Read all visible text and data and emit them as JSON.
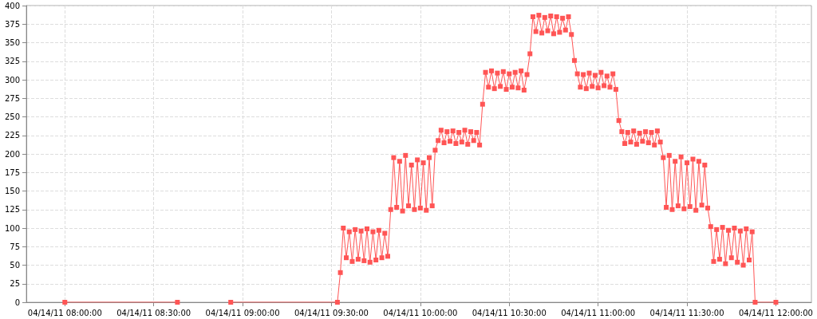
{
  "chart_data": {
    "type": "line",
    "marker": "square",
    "line_style": "solid",
    "grid": true,
    "xlim": [
      "--04-14T07:47",
      "--04-14T12:12"
    ],
    "xticks": [
      {
        "value": "--04-14T08:00",
        "label": "04/14/11 08:00:00"
      },
      {
        "value": "--04-14T08:30",
        "label": "04/14/11 08:30:00"
      },
      {
        "value": "--04-14T09:00",
        "label": "04/14/11 09:00:00"
      },
      {
        "value": "--04-14T09:30",
        "label": "04/14/11 09:30:00"
      },
      {
        "value": "--04-14T10:00",
        "label": "04/14/11 10:00:00"
      },
      {
        "value": "--04-14T10:30",
        "label": "04/14/11 10:30:00"
      },
      {
        "value": "--04-14T11:00",
        "label": "04/14/11 11:00:00"
      },
      {
        "value": "--04-14T11:30",
        "label": "04/14/11 11:30:00"
      },
      {
        "value": "--04-14T12:00",
        "label": "04/14/11 12:00:00"
      }
    ],
    "ylim": [
      0,
      400
    ],
    "yticks": [
      0,
      25,
      50,
      75,
      100,
      125,
      150,
      175,
      200,
      225,
      250,
      275,
      300,
      325,
      350,
      375,
      400
    ],
    "x": [
      "--04-14T08:00",
      "--04-14T08:38",
      "--04-14T08:47",
      "--04-14T08:56",
      "--04-14T09:32",
      "--04-14T09:33",
      "--04-14T09:34",
      "--04-14T09:35",
      "--04-14T09:36",
      "--04-14T09:37",
      "--04-14T09:38",
      "--04-14T09:39",
      "--04-14T09:40",
      "--04-14T09:41",
      "--04-14T09:42",
      "--04-14T09:43",
      "--04-14T09:44",
      "--04-14T09:45",
      "--04-14T09:46",
      "--04-14T09:47",
      "--04-14T09:48",
      "--04-14T09:49",
      "--04-14T09:50",
      "--04-14T09:51",
      "--04-14T09:52",
      "--04-14T09:53",
      "--04-14T09:54",
      "--04-14T09:55",
      "--04-14T09:56",
      "--04-14T09:57",
      "--04-14T09:58",
      "--04-14T09:59",
      "--04-14T10:00",
      "--04-14T10:01",
      "--04-14T10:02",
      "--04-14T10:03",
      "--04-14T10:04",
      "--04-14T10:05",
      "--04-14T10:06",
      "--04-14T10:07",
      "--04-14T10:08",
      "--04-14T10:09",
      "--04-14T10:10",
      "--04-14T10:11",
      "--04-14T10:12",
      "--04-14T10:13",
      "--04-14T10:14",
      "--04-14T10:15",
      "--04-14T10:16",
      "--04-14T10:17",
      "--04-14T10:18",
      "--04-14T10:19",
      "--04-14T10:20",
      "--04-14T10:21",
      "--04-14T10:22",
      "--04-14T10:23",
      "--04-14T10:24",
      "--04-14T10:25",
      "--04-14T10:26",
      "--04-14T10:27",
      "--04-14T10:28",
      "--04-14T10:29",
      "--04-14T10:30",
      "--04-14T10:31",
      "--04-14T10:32",
      "--04-14T10:33",
      "--04-14T10:34",
      "--04-14T10:35",
      "--04-14T10:36",
      "--04-14T10:37",
      "--04-14T10:38",
      "--04-14T10:39",
      "--04-14T10:40",
      "--04-14T10:41",
      "--04-14T10:42",
      "--04-14T10:43",
      "--04-14T10:44",
      "--04-14T10:45",
      "--04-14T10:46",
      "--04-14T10:47",
      "--04-14T10:48",
      "--04-14T10:49",
      "--04-14T10:50",
      "--04-14T10:51",
      "--04-14T10:52",
      "--04-14T10:53",
      "--04-14T10:54",
      "--04-14T10:55",
      "--04-14T10:56",
      "--04-14T10:57",
      "--04-14T10:58",
      "--04-14T10:59",
      "--04-14T11:00",
      "--04-14T11:01",
      "--04-14T11:02",
      "--04-14T11:03",
      "--04-14T11:04",
      "--04-14T11:05",
      "--04-14T11:06",
      "--04-14T11:07",
      "--04-14T11:08",
      "--04-14T11:09",
      "--04-14T11:10",
      "--04-14T11:11",
      "--04-14T11:12",
      "--04-14T11:13",
      "--04-14T11:14",
      "--04-14T11:15",
      "--04-14T11:16",
      "--04-14T11:17",
      "--04-14T11:18",
      "--04-14T11:19",
      "--04-14T11:20",
      "--04-14T11:21",
      "--04-14T11:22",
      "--04-14T11:23",
      "--04-14T11:24",
      "--04-14T11:25",
      "--04-14T11:26",
      "--04-14T11:27",
      "--04-14T11:28",
      "--04-14T11:29",
      "--04-14T11:30",
      "--04-14T11:31",
      "--04-14T11:32",
      "--04-14T11:33",
      "--04-14T11:34",
      "--04-14T11:35",
      "--04-14T11:36",
      "--04-14T11:37",
      "--04-14T11:38",
      "--04-14T11:39",
      "--04-14T11:40",
      "--04-14T11:41",
      "--04-14T11:42",
      "--04-14T11:43",
      "--04-14T11:44",
      "--04-14T11:45",
      "--04-14T11:46",
      "--04-14T11:47",
      "--04-14T11:48",
      "--04-14T11:49",
      "--04-14T11:50",
      "--04-14T11:51",
      "--04-14T11:52",
      "--04-14T11:53",
      "--04-14T12:00"
    ],
    "series": [
      {
        "color": "#ff5555",
        "values": [
          0,
          0,
          null,
          0,
          0,
          40,
          100,
          60,
          95,
          55,
          98,
          58,
          96,
          56,
          99,
          54,
          95,
          57,
          97,
          60,
          93,
          62,
          125,
          195,
          128,
          190,
          123,
          198,
          130,
          185,
          125,
          192,
          127,
          188,
          124,
          195,
          130,
          205,
          218,
          232,
          215,
          230,
          217,
          231,
          214,
          229,
          216,
          232,
          213,
          230,
          218,
          229,
          212,
          267,
          310,
          290,
          312,
          288,
          309,
          291,
          311,
          287,
          308,
          290,
          310,
          289,
          312,
          286,
          307,
          335,
          385,
          365,
          387,
          363,
          384,
          366,
          386,
          362,
          385,
          364,
          383,
          367,
          385,
          361,
          326,
          308,
          290,
          307,
          288,
          309,
          291,
          306,
          289,
          310,
          292,
          305,
          290,
          308,
          287,
          245,
          230,
          214,
          229,
          216,
          231,
          213,
          228,
          217,
          230,
          215,
          229,
          212,
          231,
          216,
          195,
          128,
          198,
          125,
          190,
          130,
          196,
          126,
          188,
          129,
          193,
          124,
          190,
          131,
          185,
          127,
          102,
          55,
          98,
          58,
          101,
          52,
          97,
          60,
          100,
          54,
          96,
          50,
          99,
          57,
          95,
          0,
          0
        ]
      }
    ]
  }
}
